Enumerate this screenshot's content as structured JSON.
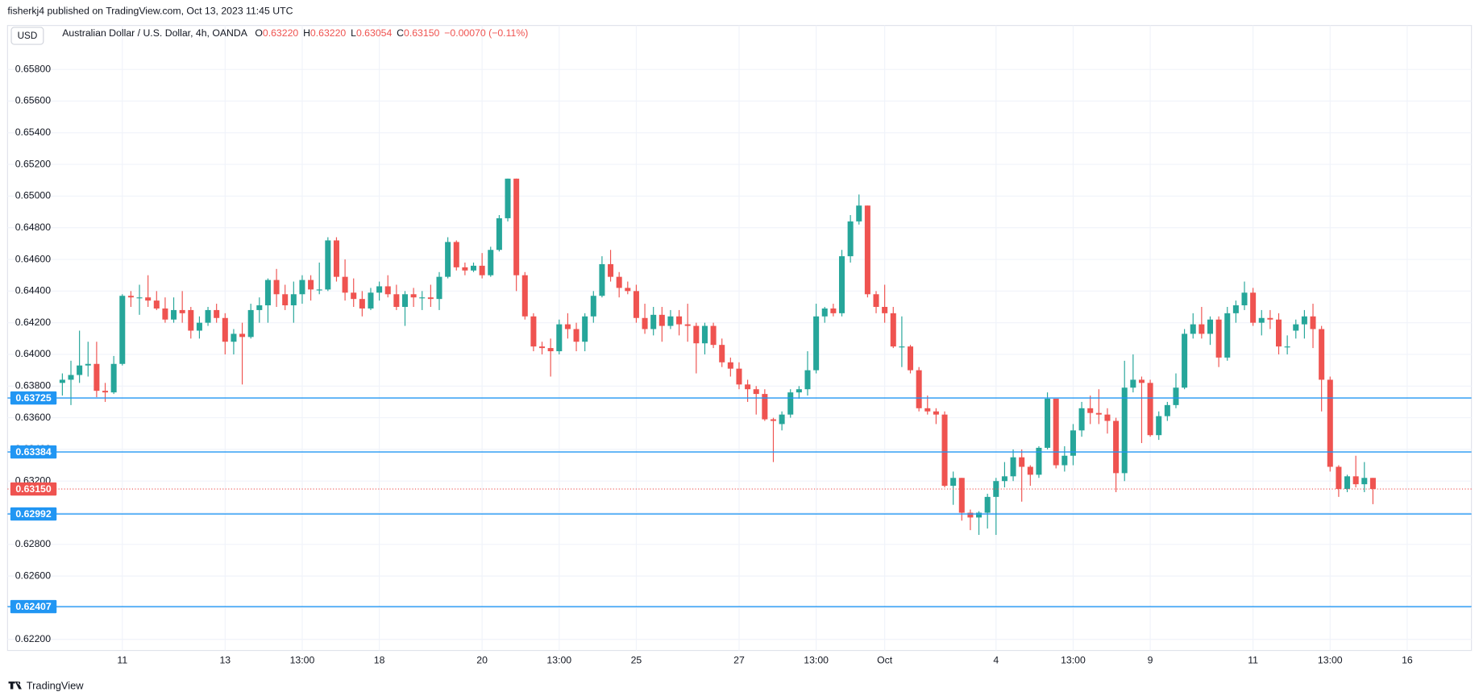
{
  "header": {
    "published": "fisherkj4 published on TradingView.com, Oct 13, 2023 11:45 UTC",
    "currency": "USD",
    "footer": "TradingView"
  },
  "chart_data": {
    "type": "candlestick",
    "title": "Australian Dollar / U.S. Dollar, 4h, OANDA",
    "ohlc_legend": [
      {
        "key": "O",
        "value": "0.63220"
      },
      {
        "key": "H",
        "value": "0.63220"
      },
      {
        "key": "L",
        "value": "0.63054"
      },
      {
        "key": "C",
        "value": "0.63150"
      }
    ],
    "change": "−0.00070 (−0.11%)",
    "up_color": "#26a69a",
    "down_color": "#ef5350",
    "level_color": "#2196f3",
    "grid": true,
    "ylim": [
      0.6213,
      0.66
    ],
    "yticks": [
      {
        "value": 0.622,
        "label": "0.62200"
      },
      {
        "value": 0.624,
        "label": "0.62400"
      },
      {
        "value": 0.626,
        "label": "0.62600"
      },
      {
        "value": 0.628,
        "label": "0.62800"
      },
      {
        "value": 0.63,
        "label": "0.63000"
      },
      {
        "value": 0.632,
        "label": "0.63200"
      },
      {
        "value": 0.634,
        "label": "0.63400"
      },
      {
        "value": 0.636,
        "label": "0.63600"
      },
      {
        "value": 0.638,
        "label": "0.63800"
      },
      {
        "value": 0.64,
        "label": "0.64000"
      },
      {
        "value": 0.642,
        "label": "0.64200"
      },
      {
        "value": 0.644,
        "label": "0.64400"
      },
      {
        "value": 0.646,
        "label": "0.64600"
      },
      {
        "value": 0.648,
        "label": "0.64800"
      },
      {
        "value": 0.65,
        "label": "0.65000"
      },
      {
        "value": 0.652,
        "label": "0.65200"
      },
      {
        "value": 0.654,
        "label": "0.65400"
      },
      {
        "value": 0.656,
        "label": "0.65600"
      },
      {
        "value": 0.658,
        "label": "0.65800"
      }
    ],
    "xlim": [
      -6.4,
      164.5
    ],
    "xticks": [
      {
        "value": 7,
        "label": "11"
      },
      {
        "value": 19,
        "label": "13"
      },
      {
        "value": 28,
        "label": "13:00"
      },
      {
        "value": 37,
        "label": "18"
      },
      {
        "value": 49,
        "label": "20"
      },
      {
        "value": 58,
        "label": "13:00"
      },
      {
        "value": 67,
        "label": "25"
      },
      {
        "value": 79,
        "label": "27"
      },
      {
        "value": 88,
        "label": "13:00"
      },
      {
        "value": 96,
        "label": "Oct"
      },
      {
        "value": 109,
        "label": "4"
      },
      {
        "value": 118,
        "label": "13:00"
      },
      {
        "value": 127,
        "label": "9"
      },
      {
        "value": 139,
        "label": "11"
      },
      {
        "value": 148,
        "label": "13:00"
      },
      {
        "value": 157,
        "label": "16"
      }
    ],
    "levels": [
      {
        "value": 0.63725,
        "label": "0.63725"
      },
      {
        "value": 0.63384,
        "label": "0.63384"
      },
      {
        "value": 0.62992,
        "label": "0.62992"
      },
      {
        "value": 0.62407,
        "label": "0.62407"
      }
    ],
    "last_price": {
      "value": 0.6315,
      "label": "0.63150"
    },
    "open": [
      0.6382,
      0.6384,
      0.6387,
      0.6393,
      0.6394,
      0.6377,
      0.6376,
      0.6394,
      0.6437,
      0.6436,
      0.6436,
      0.6434,
      0.6429,
      0.6422,
      0.6428,
      0.6428,
      0.6415,
      0.642,
      0.6428,
      0.6423,
      0.6408,
      0.6413,
      0.6411,
      0.6428,
      0.6431,
      0.6447,
      0.6438,
      0.6431,
      0.6438,
      0.6447,
      0.6441,
      0.6441,
      0.6472,
      0.6449,
      0.6439,
      0.6435,
      0.6429,
      0.6439,
      0.6443,
      0.6438,
      0.643,
      0.6438,
      0.6436,
      0.6436,
      0.6435,
      0.6449,
      0.6471,
      0.6455,
      0.6453,
      0.6456,
      0.645,
      0.6466,
      0.6486,
      0.6511,
      0.645,
      0.6424,
      0.6405,
      0.6404,
      0.6402,
      0.6419,
      0.6416,
      0.6408,
      0.6424,
      0.6437,
      0.6457,
      0.6449,
      0.6442,
      0.644,
      0.6423,
      0.6416,
      0.6425,
      0.6418,
      0.6424,
      0.6419,
      0.6418,
      0.6407,
      0.6418,
      0.6406,
      0.6395,
      0.6391,
      0.6381,
      0.6378,
      0.6375,
      0.6359,
      0.6356,
      0.6362,
      0.6376,
      0.6378,
      0.639,
      0.6424,
      0.6429,
      0.6426,
      0.6462,
      0.6484,
      0.6494,
      0.6438,
      0.643,
      0.6426,
      0.6405,
      0.6405,
      0.639,
      0.6366,
      0.6364,
      0.6362,
      0.6317,
      0.6322,
      0.63,
      0.6297,
      0.63,
      0.631,
      0.632,
      0.6323,
      0.6335,
      0.6329,
      0.6324,
      0.6341,
      0.6372,
      0.633,
      0.6336,
      0.6352,
      0.6366,
      0.6363,
      0.6362,
      0.6358,
      0.6325,
      0.6379,
      0.6384,
      0.6382,
      0.6349,
      0.6361,
      0.6368,
      0.6379,
      0.6413,
      0.6419,
      0.6413,
      0.6422,
      0.6398,
      0.6426,
      0.6431,
      0.6439,
      0.642,
      0.6423,
      0.6422,
      0.6405,
      0.6415,
      0.6419,
      0.6424,
      0.6416,
      0.6384,
      0.6329,
      0.6315,
      0.6323,
      0.6318,
      0.6322
    ],
    "high": [
      0.6388,
      0.6396,
      0.6415,
      0.6408,
      0.6408,
      0.6382,
      0.6399,
      0.6438,
      0.644,
      0.6444,
      0.645,
      0.644,
      0.6436,
      0.6436,
      0.644,
      0.643,
      0.6424,
      0.643,
      0.6432,
      0.6426,
      0.6416,
      0.642,
      0.6432,
      0.6436,
      0.6448,
      0.6454,
      0.6444,
      0.6446,
      0.645,
      0.645,
      0.6458,
      0.6474,
      0.6474,
      0.646,
      0.6448,
      0.644,
      0.6442,
      0.6446,
      0.645,
      0.6444,
      0.644,
      0.6442,
      0.644,
      0.6444,
      0.6452,
      0.6474,
      0.6472,
      0.6458,
      0.6458,
      0.6464,
      0.6468,
      0.6488,
      0.6511,
      0.6511,
      0.6452,
      0.6426,
      0.6408,
      0.641,
      0.6422,
      0.6426,
      0.642,
      0.6426,
      0.644,
      0.6462,
      0.6466,
      0.6452,
      0.6446,
      0.6444,
      0.6432,
      0.643,
      0.643,
      0.6428,
      0.6428,
      0.6432,
      0.642,
      0.642,
      0.642,
      0.641,
      0.6398,
      0.6395,
      0.6384,
      0.638,
      0.6378,
      0.636,
      0.6364,
      0.6378,
      0.638,
      0.6402,
      0.6432,
      0.643,
      0.6432,
      0.6466,
      0.6488,
      0.6501,
      0.6494,
      0.644,
      0.6444,
      0.643,
      0.6424,
      0.6406,
      0.6392,
      0.6374,
      0.6366,
      0.6364,
      0.6326,
      0.6322,
      0.6302,
      0.6301,
      0.6312,
      0.6322,
      0.6332,
      0.634,
      0.634,
      0.633,
      0.6342,
      0.6376,
      0.6372,
      0.6342,
      0.6356,
      0.637,
      0.6374,
      0.6378,
      0.6366,
      0.636,
      0.6396,
      0.64,
      0.6386,
      0.6384,
      0.6364,
      0.637,
      0.6388,
      0.6416,
      0.6426,
      0.643,
      0.6424,
      0.6424,
      0.643,
      0.6434,
      0.6446,
      0.6442,
      0.6428,
      0.6428,
      0.6426,
      0.6412,
      0.6422,
      0.6428,
      0.6432,
      0.6418,
      0.6386,
      0.633,
      0.6324,
      0.6336,
      0.6332,
      0.6322
    ],
    "low": [
      0.6374,
      0.6368,
      0.6382,
      0.6386,
      0.6373,
      0.637,
      0.6375,
      0.6393,
      0.643,
      0.6425,
      0.643,
      0.6428,
      0.642,
      0.642,
      0.642,
      0.641,
      0.641,
      0.6418,
      0.642,
      0.64,
      0.64,
      0.6381,
      0.641,
      0.642,
      0.642,
      0.643,
      0.6428,
      0.642,
      0.6432,
      0.6434,
      0.6438,
      0.644,
      0.6446,
      0.6434,
      0.643,
      0.6424,
      0.6428,
      0.6434,
      0.6436,
      0.6428,
      0.6418,
      0.643,
      0.6428,
      0.643,
      0.6428,
      0.6448,
      0.6453,
      0.645,
      0.6452,
      0.6448,
      0.6449,
      0.6465,
      0.6484,
      0.644,
      0.6422,
      0.6402,
      0.64,
      0.6386,
      0.64,
      0.641,
      0.6402,
      0.6402,
      0.642,
      0.6436,
      0.6446,
      0.6436,
      0.6438,
      0.642,
      0.6413,
      0.6412,
      0.6408,
      0.6416,
      0.6412,
      0.6408,
      0.6388,
      0.64,
      0.6404,
      0.6392,
      0.6386,
      0.6378,
      0.637,
      0.6362,
      0.6358,
      0.6332,
      0.6352,
      0.636,
      0.6372,
      0.6374,
      0.6388,
      0.642,
      0.6424,
      0.6424,
      0.6458,
      0.6482,
      0.6436,
      0.6426,
      0.642,
      0.6404,
      0.6392,
      0.6388,
      0.6364,
      0.6362,
      0.6356,
      0.6316,
      0.6305,
      0.6295,
      0.6289,
      0.6286,
      0.629,
      0.6286,
      0.6316,
      0.632,
      0.6307,
      0.6317,
      0.6322,
      0.634,
      0.6328,
      0.6326,
      0.633,
      0.6348,
      0.6356,
      0.6356,
      0.635,
      0.6313,
      0.632,
      0.6376,
      0.6344,
      0.6348,
      0.6346,
      0.6358,
      0.6366,
      0.6378,
      0.641,
      0.641,
      0.6406,
      0.6392,
      0.6396,
      0.642,
      0.6428,
      0.6418,
      0.6412,
      0.6416,
      0.64,
      0.64,
      0.641,
      0.641,
      0.6404,
      0.6364,
      0.6326,
      0.631,
      0.6313,
      0.6316,
      0.6313,
      0.63054
    ],
    "close": [
      0.6384,
      0.6387,
      0.6393,
      0.6394,
      0.6377,
      0.6376,
      0.6394,
      0.6437,
      0.6436,
      0.6436,
      0.6434,
      0.6429,
      0.6422,
      0.6428,
      0.6426,
      0.6415,
      0.642,
      0.6428,
      0.6423,
      0.6408,
      0.6413,
      0.6411,
      0.6428,
      0.6431,
      0.6447,
      0.6438,
      0.6431,
      0.6438,
      0.6447,
      0.6441,
      0.6441,
      0.6472,
      0.6449,
      0.6439,
      0.6435,
      0.6429,
      0.6439,
      0.6443,
      0.6438,
      0.643,
      0.6438,
      0.6436,
      0.6436,
      0.6435,
      0.6449,
      0.6471,
      0.6455,
      0.6453,
      0.6456,
      0.645,
      0.6466,
      0.6486,
      0.6511,
      0.645,
      0.6424,
      0.6405,
      0.6404,
      0.6402,
      0.6419,
      0.6416,
      0.6408,
      0.6424,
      0.6437,
      0.6457,
      0.6449,
      0.6442,
      0.644,
      0.6423,
      0.6416,
      0.6425,
      0.6418,
      0.6424,
      0.6419,
      0.6418,
      0.6407,
      0.6418,
      0.6406,
      0.6395,
      0.6391,
      0.6381,
      0.6378,
      0.6375,
      0.6359,
      0.6358,
      0.6362,
      0.6376,
      0.6378,
      0.639,
      0.6424,
      0.6429,
      0.6426,
      0.6462,
      0.6484,
      0.6494,
      0.6438,
      0.643,
      0.6426,
      0.6405,
      0.6405,
      0.639,
      0.6366,
      0.6364,
      0.6362,
      0.6317,
      0.6322,
      0.63,
      0.6297,
      0.63,
      0.631,
      0.632,
      0.6323,
      0.6335,
      0.6329,
      0.6324,
      0.6341,
      0.6372,
      0.633,
      0.6336,
      0.6352,
      0.6366,
      0.6363,
      0.6362,
      0.6358,
      0.6325,
      0.6379,
      0.6384,
      0.6382,
      0.6349,
      0.6361,
      0.6368,
      0.6379,
      0.6413,
      0.6419,
      0.6413,
      0.6422,
      0.6398,
      0.6426,
      0.6431,
      0.6439,
      0.642,
      0.6423,
      0.6422,
      0.6405,
      0.6405,
      0.6419,
      0.6424,
      0.6416,
      0.6384,
      0.6329,
      0.6315,
      0.6323,
      0.6318,
      0.6322,
      0.6315
    ]
  }
}
